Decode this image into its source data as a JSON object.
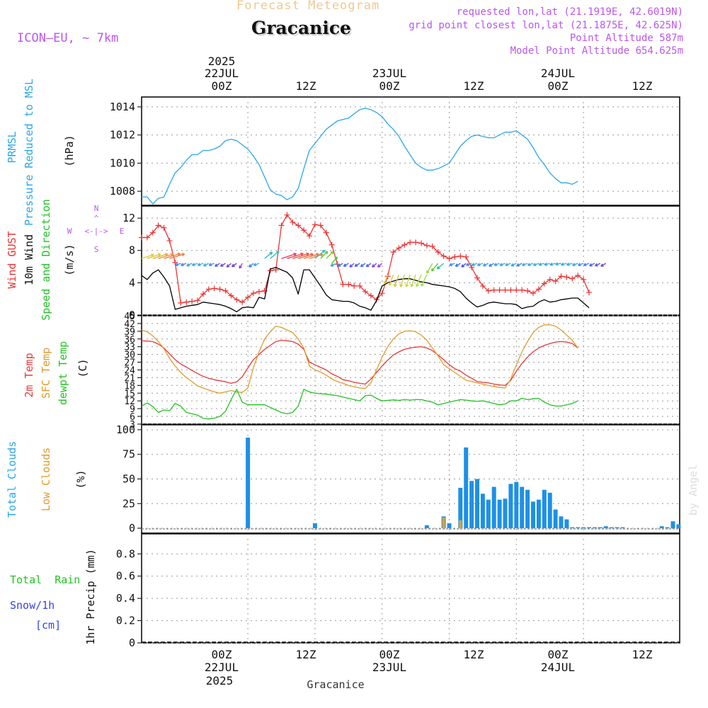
{
  "header": {
    "subtitle": "Forecast Meteogram",
    "title": "Gracanice",
    "model": "ICON—EU, ~ 7km",
    "requested": "requested lon,lat (21.1919E, 42.6019N)",
    "gridpoint": "grid point closest lon,lat (21.1875E, 42.625N)",
    "altitude": "Point Altitude 587m",
    "model_altitude": "Model Point Altitude 654.625m",
    "bottom_label": "Gracanice",
    "credit": "by Angel"
  },
  "time_axis": {
    "top_year": "2025",
    "day_labels": [
      "22JUL",
      "23JUL",
      "24JUL"
    ],
    "tick_labels": [
      "00Z",
      "12Z",
      "00Z",
      "12Z",
      "00Z",
      "12Z"
    ],
    "bottom_year": "2025"
  },
  "panel_labels": {
    "prmsl": "PRMSL",
    "prmsl_long": "Pressure Reduced to MSL",
    "prmsl_unit": "(hPa)",
    "gust": "Wind GUST",
    "wind": "10m Wind",
    "wind_dir": "Speed and Direction",
    "wind_unit": "(m/s)",
    "compass": {
      "n": "N",
      "s": "S",
      "w": "W",
      "e": "E",
      "arrow": "<-|->"
    },
    "t2m": "2m Temp",
    "sfc": "SFC Temp",
    "dewpt": "dewpt Temp",
    "temp_unit": "(C)",
    "total_clouds": "Total Clouds",
    "low_clouds": "Low Clouds",
    "cloud_unit": "(%)",
    "rain": "Total  Rain",
    "snow": "Snow/1h",
    "snow_unit": "[cm]",
    "precip": "1hr Precip (mm)"
  },
  "colors": {
    "pressure": "#2aa7e8",
    "gust": "#ee3333",
    "wind": "#000000",
    "t2m": "#e33a3a",
    "sfc": "#e09b2d",
    "dewpt": "#22c322",
    "total_clouds": "#1e90e6",
    "low_clouds": "#d9a23e",
    "rain_label": "#22c322",
    "snow_label": "#3344ee",
    "title_gray": "#dddddd",
    "subtitle": "#f0c890",
    "info": "#bb55ee"
  },
  "chart_data": [
    {
      "type": "line",
      "name": "pressure",
      "ylim": [
        1007,
        1014.7
      ],
      "yticks": [
        "1008",
        "1010",
        "1012",
        "1014"
      ],
      "x_hours": [
        -19,
        -18,
        -17,
        -16,
        -15,
        -14,
        -13,
        -12,
        -11,
        -10,
        -9,
        -8,
        -7,
        -6,
        -5,
        -4,
        -3,
        -2,
        -1,
        0,
        1,
        2,
        3,
        4,
        5,
        6,
        7,
        8,
        9,
        10,
        11,
        12,
        13,
        14,
        15,
        16,
        17,
        18,
        19,
        20,
        21,
        22,
        23,
        24,
        25,
        26,
        27,
        28,
        29,
        30,
        31,
        32,
        33,
        34,
        35,
        36,
        37,
        38,
        39,
        40,
        41,
        42,
        43,
        44,
        45,
        46,
        47,
        48,
        49,
        50,
        51,
        52,
        53,
        54,
        55,
        56,
        57,
        58,
        59,
        60,
        61,
        62,
        63,
        64,
        65,
        66,
        67,
        68,
        69,
        70,
        71,
        72,
        73,
        74,
        75,
        76,
        77
      ],
      "series": [
        {
          "name": "PRMSL",
          "values": [
            1007.6,
            1007.6,
            1007.1,
            1007.5,
            1007.6,
            1008.5,
            1009.3,
            1009.7,
            1010.2,
            1010.6,
            1010.6,
            1010.9,
            1010.9,
            1011.0,
            1011.2,
            1011.6,
            1011.7,
            1011.6,
            1011.3,
            1011.0,
            1010.5,
            1009.9,
            1009.0,
            1008.1,
            1007.8,
            1007.7,
            1007.4,
            1007.6,
            1008.2,
            1009.6,
            1010.9,
            1011.4,
            1011.9,
            1012.4,
            1012.7,
            1013.0,
            1013.1,
            1013.2,
            1013.5,
            1013.8,
            1013.9,
            1013.8,
            1013.6,
            1013.3,
            1012.8,
            1012.4,
            1011.9,
            1011.2,
            1010.6,
            1010.0,
            1009.7,
            1009.5,
            1009.5,
            1009.6,
            1009.8,
            1010.0,
            1010.6,
            1011.2,
            1011.6,
            1011.9,
            1012.0,
            1011.9,
            1011.8,
            1011.8,
            1012.0,
            1012.2,
            1012.2,
            1012.3,
            1012.0,
            1011.7,
            1011.1,
            1010.4,
            1009.9,
            1009.3,
            1008.9,
            1008.6,
            1008.6,
            1008.5,
            1008.7
          ]
        }
      ]
    },
    {
      "type": "line",
      "name": "wind",
      "ylim": [
        0,
        13.5
      ],
      "yticks": [
        "0",
        "4",
        "8",
        "12"
      ],
      "x_hours": [
        -19,
        -18,
        -17,
        -16,
        -15,
        -14,
        -13,
        -12,
        -11,
        -10,
        -9,
        -8,
        -7,
        -6,
        -5,
        -4,
        -3,
        -2,
        -1,
        0,
        1,
        2,
        3,
        4,
        5,
        6,
        7,
        8,
        9,
        10,
        11,
        12,
        13,
        14,
        15,
        16,
        17,
        18,
        19,
        20,
        21,
        22,
        23,
        24,
        25,
        26,
        27,
        28,
        29,
        30,
        31,
        32,
        33,
        34,
        35,
        36,
        37,
        38,
        39,
        40,
        41,
        42,
        43,
        44,
        45,
        46,
        47,
        48,
        49,
        50,
        51,
        52,
        53,
        54,
        55,
        56,
        57,
        58,
        59,
        60,
        61,
        62,
        63,
        64,
        65,
        66,
        67,
        68,
        69,
        70,
        71,
        72,
        73,
        74,
        75,
        76,
        77
      ],
      "series": [
        {
          "name": "Wind GUST",
          "values": [
            9.6,
            9.6,
            10.2,
            11.1,
            10.8,
            9.2,
            6.5,
            1.5,
            1.6,
            1.7,
            1.8,
            2.6,
            3.2,
            3.3,
            3.2,
            3.0,
            2.4,
            1.9,
            1.6,
            2.2,
            2.7,
            2.9,
            3.0,
            5.5,
            5.6,
            11.1,
            12.4,
            11.5,
            11.1,
            10.5,
            9.8,
            11.2,
            11.1,
            10.2,
            8.7,
            6.3,
            3.8,
            3.8,
            3.6,
            3.6,
            2.9,
            2.4,
            1.9,
            2.7,
            4.8,
            7.8,
            8.3,
            8.7,
            9.0,
            9.0,
            8.9,
            8.6,
            8.5,
            7.8,
            7.3,
            7.0,
            7.2,
            7.3,
            7.2,
            5.9,
            4.6,
            3.6,
            3.0,
            3.1,
            3.1,
            3.1,
            3.1,
            3.1,
            3.1,
            3.0,
            2.7,
            3.2,
            3.9,
            4.4,
            4.2,
            4.8,
            4.7,
            4.5,
            4.9,
            4.4,
            2.8
          ]
        },
        {
          "name": "10m Wind",
          "values": [
            4.9,
            4.4,
            5.2,
            5.6,
            4.7,
            3.6,
            0.7,
            0.9,
            1.1,
            1.2,
            1.3,
            1.6,
            1.5,
            1.4,
            1.3,
            1.1,
            0.8,
            0.4,
            0.9,
            1.0,
            0.9,
            2.2,
            2.0,
            5.7,
            5.9,
            5.6,
            5.3,
            4.6,
            2.6,
            5.6,
            5.6,
            4.6,
            3.6,
            2.5,
            1.9,
            1.8,
            1.7,
            1.7,
            1.5,
            1.1,
            0.9,
            0.6,
            1.8,
            3.6,
            4.0,
            4.2,
            4.4,
            4.5,
            4.5,
            4.3,
            4.1,
            4.0,
            3.8,
            3.7,
            3.6,
            3.5,
            3.3,
            2.9,
            2.1,
            1.5,
            1.0,
            1.2,
            1.5,
            1.6,
            1.5,
            1.4,
            1.4,
            1.3,
            0.8,
            1.0,
            1.1,
            1.6,
            1.9,
            1.6,
            1.7,
            1.9,
            2.0,
            2.1,
            2.1,
            1.5,
            0.9
          ]
        }
      ]
    },
    {
      "type": "line",
      "name": "temperature",
      "ylim": [
        3,
        45
      ],
      "yticks": [
        "3",
        "6",
        "9",
        "12",
        "15",
        "18",
        "21",
        "24",
        "27",
        "30",
        "33",
        "36",
        "39",
        "42",
        "45"
      ],
      "x_hours": [
        -19,
        -18,
        -17,
        -16,
        -15,
        -14,
        -13,
        -12,
        -11,
        -10,
        -9,
        -8,
        -7,
        -6,
        -5,
        -4,
        -3,
        -2,
        -1,
        0,
        1,
        2,
        3,
        4,
        5,
        6,
        7,
        8,
        9,
        10,
        11,
        12,
        13,
        14,
        15,
        16,
        17,
        18,
        19,
        20,
        21,
        22,
        23,
        24,
        25,
        26,
        27,
        28,
        29,
        30,
        31,
        32,
        33,
        34,
        35,
        36,
        37,
        38,
        39,
        40,
        41,
        42,
        43,
        44,
        45,
        46,
        47,
        48,
        49,
        50,
        51,
        52,
        53,
        54,
        55,
        56,
        57,
        58,
        59,
        60,
        61,
        62,
        63,
        64,
        65,
        66,
        67,
        68,
        69,
        70,
        71,
        72,
        73,
        74,
        75,
        76,
        77
      ],
      "series": [
        {
          "name": "2m Temp",
          "values": [
            35.3,
            35.2,
            35.0,
            34.0,
            32.5,
            30.2,
            28.0,
            26.3,
            25.1,
            23.8,
            22.6,
            21.5,
            20.8,
            20.2,
            19.8,
            19.4,
            18.8,
            19.4,
            21.4,
            24.8,
            28.0,
            30.0,
            32.0,
            33.5,
            35.0,
            35.5,
            35.3,
            35.0,
            34.0,
            32.0,
            27.0,
            26.0,
            25.0,
            24.0,
            22.5,
            21.5,
            20.2,
            19.8,
            19.2,
            18.8,
            18.5,
            20.5,
            23.0,
            25.5,
            27.8,
            29.8,
            31.0,
            32.0,
            32.5,
            32.8,
            33.0,
            32.5,
            31.5,
            29.8,
            28.0,
            26.0,
            24.5,
            23.5,
            22.0,
            20.8,
            19.5,
            19.2,
            19.0,
            18.5,
            18.2,
            18.0,
            20.0,
            23.5,
            26.5,
            29.0,
            31.0,
            32.5,
            33.5,
            34.2,
            34.8,
            35.0,
            34.8,
            34.2,
            32.5
          ]
        },
        {
          "name": "SFC Temp",
          "values": [
            39.5,
            38.8,
            37.2,
            35.0,
            32.2,
            28.5,
            25.5,
            23.0,
            21.0,
            19.5,
            17.8,
            17.0,
            16.2,
            15.5,
            15.0,
            15.5,
            16.0,
            15.5,
            15.3,
            17.0,
            25.0,
            31.0,
            36.0,
            38.8,
            41.0,
            40.5,
            39.5,
            38.5,
            36.0,
            32.5,
            25.5,
            24.0,
            23.2,
            22.0,
            20.5,
            19.5,
            18.8,
            18.0,
            17.5,
            17.0,
            16.8,
            19.0,
            24.0,
            29.0,
            33.0,
            36.0,
            38.0,
            39.0,
            39.2,
            38.8,
            37.5,
            35.5,
            32.5,
            29.5,
            26.0,
            24.5,
            23.0,
            21.5,
            20.0,
            19.5,
            19.0,
            18.5,
            18.0,
            17.6,
            17.2,
            17.0,
            20.5,
            26.0,
            31.0,
            35.0,
            38.5,
            40.5,
            41.5,
            41.5,
            41.0,
            39.5,
            37.5,
            35.5,
            32.5
          ]
        },
        {
          "name": "dewpt Temp",
          "values": [
            10.0,
            11.2,
            9.8,
            7.5,
            8.5,
            8.2,
            11.0,
            10.0,
            7.5,
            7.0,
            6.5,
            5.2,
            5.0,
            5.3,
            6.0,
            8.0,
            12.5,
            16.5,
            11.5,
            10.5,
            10.5,
            10.5,
            10.5,
            9.5,
            8.5,
            7.5,
            7.0,
            7.5,
            10.0,
            16.5,
            15.5,
            15.0,
            14.8,
            14.6,
            14.3,
            14.0,
            13.5,
            13.0,
            12.5,
            12.0,
            14.0,
            14.2,
            13.0,
            12.0,
            12.2,
            12.4,
            12.2,
            12.5,
            12.3,
            12.5,
            12.5,
            12.0,
            11.5,
            10.5,
            11.0,
            11.5,
            12.0,
            12.5,
            12.3,
            12.0,
            11.8,
            12.0,
            11.5,
            11.0,
            10.5,
            10.8,
            12.0,
            12.0,
            13.0,
            12.5,
            12.8,
            13.0,
            11.5,
            10.5,
            10.0,
            10.0,
            10.5,
            11.0,
            12.0
          ]
        }
      ]
    },
    {
      "type": "bar",
      "name": "clouds",
      "ylim": [
        -5,
        105
      ],
      "yticks": [
        "0",
        "25",
        "50",
        "75",
        "100"
      ],
      "series": [
        {
          "name": "Total Clouds",
          "x_hours": [
            0,
            12,
            32,
            35,
            36,
            38,
            39,
            40,
            41,
            42,
            43,
            44,
            45,
            46,
            47,
            48,
            49,
            50,
            51,
            52,
            53,
            54,
            55,
            56,
            57,
            58,
            59,
            60,
            61,
            62,
            63,
            64,
            65,
            66,
            67,
            74,
            75,
            76,
            77
          ],
          "values": [
            92,
            5,
            3,
            12,
            5,
            41,
            82,
            48,
            50,
            35,
            29,
            42,
            29,
            30,
            45,
            47,
            42,
            39,
            27,
            29,
            39,
            36,
            19,
            12,
            9,
            1,
            1,
            1,
            1,
            1,
            1,
            2,
            1,
            1,
            1,
            2,
            1,
            7,
            4
          ]
        },
        {
          "name": "Low Clouds",
          "x_hours": [
            35,
            38
          ],
          "values": [
            11,
            8
          ]
        }
      ]
    },
    {
      "type": "bar",
      "name": "precip",
      "ylim": [
        0,
        0.98
      ],
      "yticks": [
        "0",
        "0.2",
        "0.4",
        "0.6",
        "0.8"
      ],
      "series": [
        {
          "name": "1hr Precip",
          "values": []
        }
      ]
    }
  ]
}
